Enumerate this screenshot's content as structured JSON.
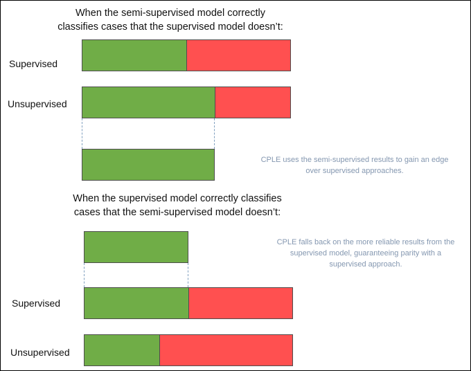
{
  "colors": {
    "correct": "#70ad47",
    "incorrect": "#ff5050",
    "note_text": "#8497b0",
    "guide_line": "#7f9fbf"
  },
  "top": {
    "title_line1": "When the semi-supervised model correctly",
    "title_line2": "classifies cases that the supervised model doesn’t:",
    "supervised_label": "Supervised",
    "unsupervised_label": "Unsupervised",
    "supervised_correct_fraction": 0.5,
    "unsupervised_correct_fraction": 0.635,
    "result_correct_fraction": 0.635,
    "note_line1": "CPLE uses the semi-supervised results to gain an edge",
    "note_line2": "over supervised approaches."
  },
  "bottom": {
    "title_line1": "When the supervised model correctly classifies",
    "title_line2": "cases that the semi-supervised model doesn’t:",
    "supervised_label": "Supervised",
    "unsupervised_label": "Unsupervised",
    "supervised_correct_fraction": 0.5,
    "unsupervised_correct_fraction": 0.36,
    "result_correct_fraction": 0.5,
    "note_line1": "CPLE falls back on the more reliable results from the",
    "note_line2": "supervised model, guaranteeing parity with a",
    "note_line3": "supervised approach."
  }
}
